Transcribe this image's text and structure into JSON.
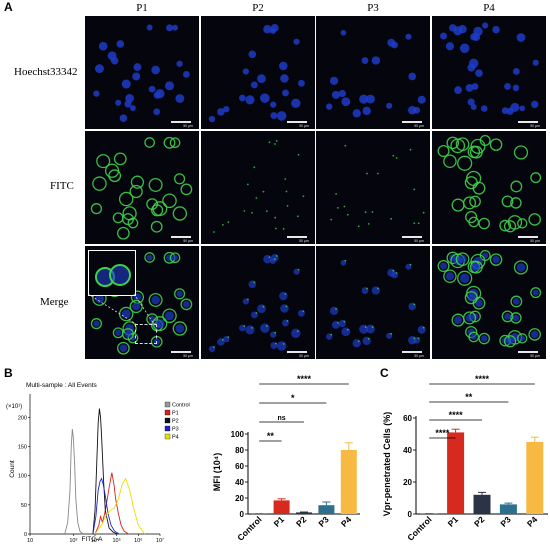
{
  "panel_a": {
    "letter": "A",
    "columns": [
      "P1",
      "P2",
      "P3",
      "P4"
    ],
    "rows": [
      "Hoechst33342",
      "FITC",
      "Merge"
    ],
    "scale_bar": "50 μm",
    "colors": {
      "nucleus": "#1e3cc8",
      "fitc": "#3fd14a",
      "background": "#05060d"
    }
  },
  "panel_b": {
    "letter": "B"
  },
  "panel_c": {
    "letter": "C"
  },
  "chart_data": [
    {
      "type": "line",
      "title": "Multi-sample : All Events",
      "xlabel": "FITC-A",
      "ylabel": "Count",
      "y_multiplier": "(×10¹)",
      "x_scale": "log",
      "xlim": [
        10,
        10000000
      ],
      "ylim": [
        0,
        240
      ],
      "x_ticks": [
        "10",
        "10³",
        "10⁴",
        "10⁵",
        "10⁶",
        "10⁷"
      ],
      "y_ticks": [
        "0",
        "50",
        "100",
        "150",
        "200"
      ],
      "legend_position": "right",
      "series": [
        {
          "name": "Control",
          "color": "#888888",
          "x": [
            400,
            550,
            700,
            800,
            900,
            1000,
            1150,
            1300,
            1600,
            2000,
            2800
          ],
          "y": [
            0,
            20,
            75,
            150,
            180,
            165,
            120,
            60,
            20,
            5,
            0
          ]
        },
        {
          "name": "P1",
          "color": "#d62020",
          "x": [
            10000,
            15000,
            18000,
            22000,
            28000,
            35000,
            45000,
            60000,
            75000,
            90000,
            120000,
            160000,
            220000,
            350000
          ],
          "y": [
            0,
            15,
            30,
            20,
            35,
            55,
            80,
            105,
            85,
            60,
            35,
            15,
            5,
            0
          ]
        },
        {
          "name": "P2",
          "color": "#111111",
          "x": [
            8000,
            10000,
            12000,
            14000,
            16000,
            18000,
            20000,
            25000,
            30000,
            45000,
            70000,
            110000
          ],
          "y": [
            0,
            40,
            120,
            190,
            215,
            200,
            170,
            90,
            40,
            10,
            3,
            0
          ]
        },
        {
          "name": "P3",
          "color": "#1e22cc",
          "x": [
            8000,
            11000,
            14000,
            17000,
            20000,
            24000,
            30000,
            40000,
            55000,
            80000,
            130000
          ],
          "y": [
            0,
            30,
            75,
            90,
            95,
            85,
            65,
            35,
            15,
            5,
            0
          ]
        },
        {
          "name": "P4",
          "color": "#e9e000",
          "x": [
            10000,
            20000,
            30000,
            50000,
            80000,
            120000,
            180000,
            260000,
            400000,
            600000,
            1000000,
            2000000
          ],
          "y": [
            0,
            15,
            30,
            40,
            45,
            60,
            85,
            95,
            75,
            45,
            15,
            0
          ]
        }
      ]
    },
    {
      "type": "bar",
      "ylabel": "MFI (10⁴)",
      "ylim": [
        0,
        100
      ],
      "y_ticks": [
        0,
        20,
        40,
        60,
        80,
        100
      ],
      "categories": [
        "Control",
        "P1",
        "P2",
        "P3",
        "P4"
      ],
      "values": [
        0.3,
        17,
        2,
        11,
        80
      ],
      "errors": [
        0.2,
        2,
        0.5,
        4,
        9
      ],
      "colors": [
        "#666666",
        "#d62a1e",
        "#2b3446",
        "#2c6f8e",
        "#f7b942"
      ],
      "significance": [
        {
          "from": "Control",
          "to": "P1",
          "label": "**"
        },
        {
          "from": "Control",
          "to": "P2",
          "label": "ns"
        },
        {
          "from": "Control",
          "to": "P3",
          "label": "*"
        },
        {
          "from": "Control",
          "to": "P4",
          "label": "****"
        }
      ]
    },
    {
      "type": "bar",
      "ylabel": "Vpr-penetrated Cells (%)",
      "ylim": [
        0,
        60
      ],
      "y_ticks": [
        0,
        20,
        40,
        60
      ],
      "categories": [
        "Control",
        "P1",
        "P2",
        "P3",
        "P4"
      ],
      "values": [
        0.2,
        51,
        12,
        6,
        45
      ],
      "errors": [
        0.1,
        2,
        1.5,
        0.8,
        3
      ],
      "colors": [
        "#666666",
        "#d62a1e",
        "#2b3446",
        "#2c6f8e",
        "#f7b942"
      ],
      "significance": [
        {
          "from": "Control",
          "to": "P1",
          "label": "****"
        },
        {
          "from": "Control",
          "to": "P2",
          "label": "****"
        },
        {
          "from": "Control",
          "to": "P3",
          "label": "**"
        },
        {
          "from": "Control",
          "to": "P4",
          "label": "****"
        }
      ]
    }
  ]
}
